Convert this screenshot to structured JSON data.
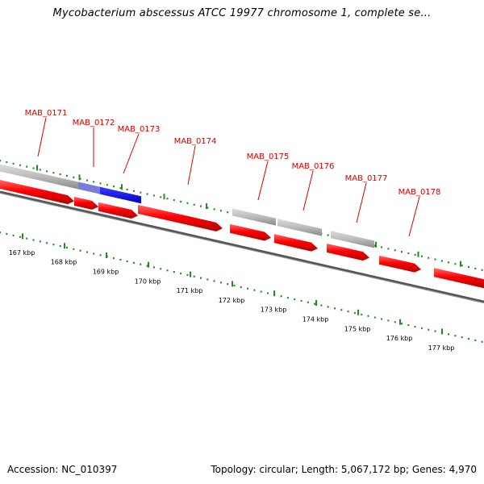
{
  "title": "Mycobacterium abscessus ATCC 19977 chromosome 1, complete se...",
  "footer": {
    "accession": "Accession: NC_010397",
    "summary": "Topology: circular; Length: 5,067,172 bp; Genes: 4,970"
  },
  "colors": {
    "forward_gene": "#ff0000",
    "hypothetical_gene": "#bbbbbb",
    "selected_gene": "#0000ff",
    "label": "#d40000",
    "tick": "#228b22",
    "backbone": "#777777"
  },
  "genes": [
    {
      "label": "MAB_0171",
      "fill": "gray"
    },
    {
      "label": "MAB_0172",
      "fill": "blue"
    },
    {
      "label": "MAB_0173",
      "fill": "blue"
    },
    {
      "label": "MAB_0174",
      "fill": "red"
    },
    {
      "label": "MAB_0175",
      "fill": "gray"
    },
    {
      "label": "MAB_0176",
      "fill": "gray"
    },
    {
      "label": "MAB_0177",
      "fill": "gray"
    },
    {
      "label": "MAB_0178",
      "fill": "red"
    }
  ],
  "ruler": [
    "167 kbp",
    "168 kbp",
    "169 kbp",
    "170 kbp",
    "171 kbp",
    "172 kbp",
    "173 kbp",
    "174 kbp",
    "175 kbp",
    "176 kbp",
    "177 kbp"
  ]
}
